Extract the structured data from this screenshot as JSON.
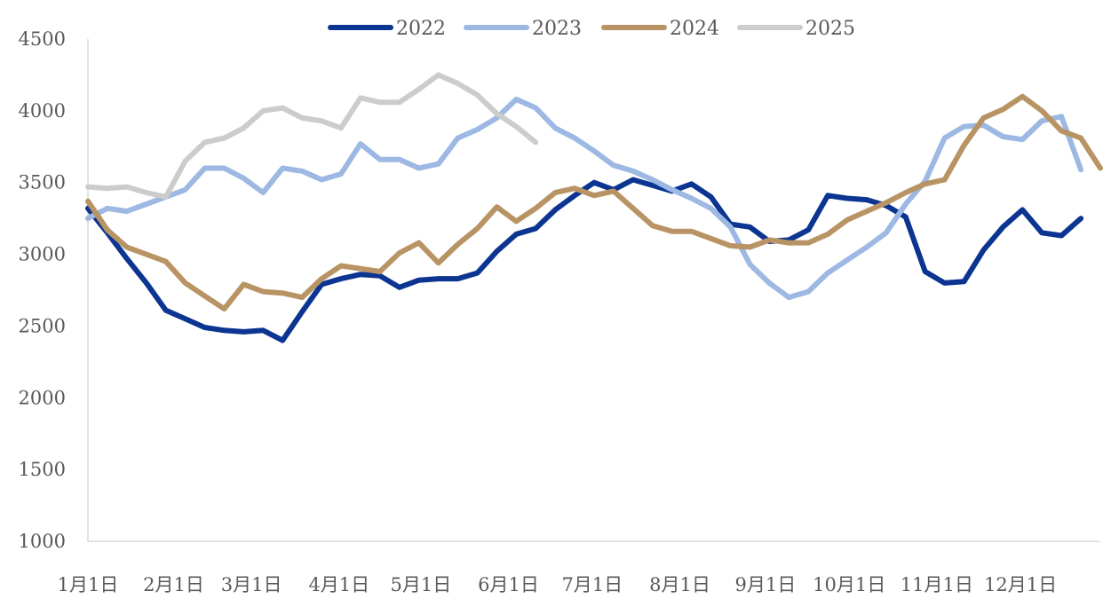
{
  "chart_data": {
    "type": "line",
    "title": "",
    "xlabel": "",
    "ylabel": "",
    "ylim": [
      1000,
      4500
    ],
    "yticks": [
      1000,
      1500,
      2000,
      2500,
      3000,
      3500,
      4000,
      4500
    ],
    "xlim": [
      1,
      53
    ],
    "xticks": [
      {
        "label": "1月1日",
        "x": 1
      },
      {
        "label": "2月1日",
        "x": 5.4
      },
      {
        "label": "3月1日",
        "x": 9.4
      },
      {
        "label": "4月1日",
        "x": 13.9
      },
      {
        "label": "5月1日",
        "x": 18.1
      },
      {
        "label": "6月1日",
        "x": 22.6
      },
      {
        "label": "7月1日",
        "x": 26.9
      },
      {
        "label": "8月1日",
        "x": 31.4
      },
      {
        "label": "9月1日",
        "x": 35.8
      },
      {
        "label": "10月1日",
        "x": 40.1
      },
      {
        "label": "11月1日",
        "x": 44.6
      },
      {
        "label": "12月1日",
        "x": 48.9
      }
    ],
    "legend_position": "top-center",
    "grid": false,
    "series": [
      {
        "name": "2022",
        "color": "#0b3591",
        "values": [
          3320,
          3150,
          2970,
          2800,
          2610,
          2550,
          2490,
          2470,
          2460,
          2470,
          2400,
          2600,
          2790,
          2830,
          2860,
          2850,
          2770,
          2820,
          2830,
          2830,
          2870,
          3020,
          3140,
          3180,
          3310,
          3410,
          3500,
          3450,
          3520,
          3480,
          3440,
          3490,
          3400,
          3210,
          3190,
          3090,
          3100,
          3170,
          3410,
          3390,
          3380,
          3340,
          3260,
          2880,
          2800,
          2810,
          3030,
          3190,
          3310,
          3150,
          3130,
          3250
        ]
      },
      {
        "name": "2023",
        "color": "#9db8e3",
        "values": [
          3250,
          3320,
          3300,
          3350,
          3400,
          3450,
          3600,
          3600,
          3530,
          3430,
          3600,
          3580,
          3520,
          3560,
          3770,
          3660,
          3660,
          3600,
          3630,
          3810,
          3870,
          3950,
          4080,
          4020,
          3880,
          3810,
          3720,
          3620,
          3580,
          3520,
          3450,
          3390,
          3320,
          3190,
          2930,
          2800,
          2700,
          2740,
          2870,
          2960,
          3050,
          3150,
          3350,
          3510,
          3810,
          3890,
          3900,
          3820,
          3800,
          3930,
          3960,
          3590
        ]
      },
      {
        "name": "2024",
        "color": "#b89465",
        "values": [
          3370,
          3170,
          3050,
          3000,
          2950,
          2800,
          2710,
          2620,
          2790,
          2740,
          2730,
          2700,
          2830,
          2920,
          2900,
          2880,
          3010,
          3080,
          2940,
          3070,
          3180,
          3330,
          3230,
          3320,
          3430,
          3460,
          3410,
          3440,
          3320,
          3200,
          3160,
          3160,
          3110,
          3060,
          3050,
          3100,
          3080,
          3080,
          3140,
          3240,
          3300,
          3360,
          3430,
          3490,
          3520,
          3760,
          3950,
          4010,
          4100,
          4000,
          3860,
          3810,
          3600
        ]
      },
      {
        "name": "2025",
        "color": "#cccccc",
        "values": [
          3470,
          3460,
          3470,
          3430,
          3400,
          3650,
          3780,
          3810,
          3880,
          4000,
          4020,
          3950,
          3930,
          3880,
          4090,
          4060,
          4060,
          4150,
          4250,
          4190,
          4110,
          3980,
          3890,
          3780
        ]
      }
    ]
  }
}
